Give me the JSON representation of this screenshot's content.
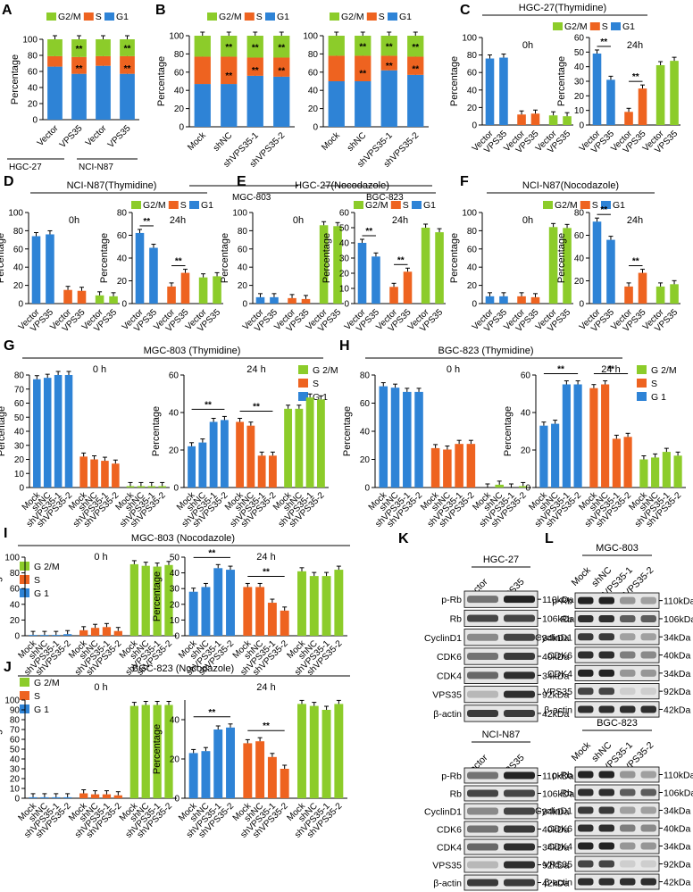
{
  "colors": {
    "g1": "#2e83d6",
    "s": "#ee6320",
    "g2m": "#8ccc2a",
    "axis": "#000000"
  },
  "chart_data": [
    {
      "id": "A",
      "type": "bar",
      "stacked": true,
      "ylim": [
        0,
        100
      ],
      "yticks": [
        0,
        20,
        40,
        60,
        80,
        100
      ],
      "ylabel": "Percentage",
      "categories": [
        "Vector",
        "VPS35",
        "Vector",
        "VPS35"
      ],
      "groups": [
        "HGC-27",
        "NCI-N87"
      ],
      "legend": [
        "G2/M",
        "S",
        "G1"
      ],
      "series": [
        {
          "name": "G1",
          "values": [
            66,
            57,
            67,
            57
          ]
        },
        {
          "name": "S",
          "values": [
            13,
            21,
            12,
            22
          ]
        },
        {
          "name": "G2/M",
          "values": [
            21,
            22,
            21,
            21
          ]
        }
      ],
      "annotations": [
        "**",
        "**",
        "**",
        "**"
      ]
    },
    {
      "id": "B1",
      "type": "bar",
      "stacked": true,
      "ylim": [
        0,
        100
      ],
      "yticks": [
        0,
        20,
        40,
        60,
        80,
        100
      ],
      "ylabel": "Percentage",
      "categories": [
        "Mock",
        "shNC",
        "shVPS35-1",
        "shVPS35-2"
      ],
      "group": "MGC-803",
      "legend": [
        "G2/M",
        "S",
        "G1"
      ],
      "series": [
        {
          "name": "G1",
          "values": [
            47,
            47,
            56,
            55
          ]
        },
        {
          "name": "S",
          "values": [
            30,
            30,
            20,
            21
          ]
        },
        {
          "name": "G2/M",
          "values": [
            23,
            23,
            24,
            24
          ]
        }
      ],
      "annotations": [
        "**",
        "**",
        "**",
        "**"
      ]
    },
    {
      "id": "B2",
      "type": "bar",
      "stacked": true,
      "ylim": [
        0,
        100
      ],
      "yticks": [
        0,
        20,
        40,
        60,
        80,
        100
      ],
      "ylabel": "",
      "categories": [
        "Mock",
        "shNC",
        "shVPS35-1",
        "shVPS35-2"
      ],
      "group": "BGC-823",
      "legend": [
        "G2/M",
        "S",
        "G1"
      ],
      "series": [
        {
          "name": "G1",
          "values": [
            50,
            50,
            62,
            57
          ]
        },
        {
          "name": "S",
          "values": [
            28,
            28,
            16,
            20
          ]
        },
        {
          "name": "G2/M",
          "values": [
            22,
            22,
            22,
            23
          ]
        }
      ],
      "annotations": [
        "**",
        "**",
        "**",
        "**"
      ]
    },
    {
      "id": "C",
      "type": "bar",
      "title": "HGC-27(Thymidine)",
      "legend": [
        "G2/M",
        "S",
        "G1"
      ],
      "categories": [
        "Vector",
        "VPS35",
        "Vector",
        "VPS35",
        "Vector",
        "VPS35"
      ],
      "panels": [
        {
          "label": "0h",
          "ylim": [
            0,
            100
          ],
          "yticks": [
            0,
            20,
            40,
            60,
            80,
            100
          ],
          "ylabel": "Percentage",
          "values": [
            76,
            77,
            12,
            13,
            11,
            10
          ]
        },
        {
          "label": "24h",
          "ylim": [
            0,
            60
          ],
          "yticks": [
            0,
            10,
            20,
            30,
            40,
            50,
            60
          ],
          "ylabel": "Percentage",
          "values": [
            49,
            31,
            9,
            25,
            41,
            44
          ]
        }
      ],
      "annotations": [
        "**",
        "**"
      ]
    },
    {
      "id": "D",
      "type": "bar",
      "title": "NCI-N87(Thymidine)",
      "legend": [
        "G2/M",
        "S",
        "G1"
      ],
      "categories": [
        "Vector",
        "VPS35",
        "Vector",
        "VPS35",
        "Vector",
        "VPS35"
      ],
      "panels": [
        {
          "label": "0h",
          "ylim": [
            0,
            100
          ],
          "yticks": [
            0,
            20,
            40,
            60,
            80,
            100
          ],
          "ylabel": "Percentage",
          "values": [
            74,
            76,
            15,
            14,
            9,
            8
          ]
        },
        {
          "label": "24h",
          "ylim": [
            0,
            80
          ],
          "yticks": [
            0,
            20,
            40,
            60,
            80
          ],
          "ylabel": "Percentage",
          "values": [
            62,
            49,
            15,
            27,
            23,
            24
          ]
        }
      ],
      "annotations": [
        "**",
        "**"
      ]
    },
    {
      "id": "E",
      "type": "bar",
      "title": "HGC-27(Nocodazole)",
      "legend": [
        "G2/M",
        "S",
        "G1"
      ],
      "categories": [
        "Vector",
        "VPS35",
        "Vector",
        "VPS35",
        "Vector",
        "VPS35"
      ],
      "panels": [
        {
          "label": "0h",
          "ylim": [
            0,
            100
          ],
          "yticks": [
            0,
            20,
            40,
            60,
            80,
            100
          ],
          "ylabel": "Percentage",
          "values": [
            7,
            7,
            6,
            5,
            86,
            85
          ]
        },
        {
          "label": "24h",
          "ylim": [
            0,
            60
          ],
          "yticks": [
            0,
            10,
            20,
            30,
            40,
            50,
            60
          ],
          "ylabel": "Percentage",
          "values": [
            40,
            31,
            11,
            21,
            50,
            47
          ]
        }
      ],
      "annotations": [
        "**",
        "**"
      ]
    },
    {
      "id": "F",
      "type": "bar",
      "title": "NCI-N87(Nocodazole)",
      "legend": [
        "G2/M",
        "S",
        "G1"
      ],
      "categories": [
        "Vector",
        "VPS35",
        "Vector",
        "VPS35",
        "Vector",
        "VPS35"
      ],
      "panels": [
        {
          "label": "0h",
          "ylim": [
            0,
            100
          ],
          "yticks": [
            0,
            20,
            40,
            60,
            80,
            100
          ],
          "ylabel": "Percentage",
          "values": [
            8,
            8,
            8,
            7,
            84,
            83
          ]
        },
        {
          "label": "24h",
          "ylim": [
            0,
            80
          ],
          "yticks": [
            0,
            20,
            40,
            60,
            80
          ],
          "ylabel": "Percentage",
          "values": [
            72,
            56,
            15,
            27,
            15,
            17
          ]
        }
      ],
      "annotations": [
        "**",
        "**"
      ]
    },
    {
      "id": "G",
      "type": "bar",
      "title": "MGC-803   (Thymidine)",
      "legend": [
        "G 2/M",
        "S",
        "G 1"
      ],
      "categories": [
        "Mock",
        "shNC",
        "shVPS35-1",
        "shVPS35-2"
      ],
      "panels": [
        {
          "label": "0 h",
          "ylim": [
            0,
            80
          ],
          "yticks": [
            0,
            10,
            20,
            30,
            40,
            50,
            60,
            70,
            80
          ],
          "ylabel": "Percentage",
          "series": [
            {
              "name": "G1",
              "values": [
                77,
                78,
                80,
                81
              ]
            },
            {
              "name": "S",
              "values": [
                22,
                20,
                19,
                17
              ]
            },
            {
              "name": "G2/M",
              "values": [
                1,
                1,
                1,
                1
              ]
            }
          ]
        },
        {
          "label": "24 h",
          "ylim": [
            0,
            60
          ],
          "yticks": [
            0,
            20,
            40,
            60
          ],
          "ylabel": "Percentage",
          "series": [
            {
              "name": "G1",
              "values": [
                22,
                24,
                35,
                36
              ]
            },
            {
              "name": "S",
              "values": [
                35,
                33,
                17,
                17
              ]
            },
            {
              "name": "G2/M",
              "values": [
                42,
                42,
                48,
                47
              ]
            }
          ]
        }
      ],
      "annotations": [
        "**",
        "**"
      ]
    },
    {
      "id": "H",
      "type": "bar",
      "title": "BGC-823   (Thymidine)",
      "legend": [
        "G 2/M",
        "S",
        "G 1"
      ],
      "categories": [
        "Mock",
        "shNC",
        "shVPS35-1",
        "shVPS35-2"
      ],
      "panels": [
        {
          "label": "0 h",
          "ylim": [
            0,
            80
          ],
          "yticks": [
            0,
            20,
            40,
            60,
            80
          ],
          "ylabel": "Percentage",
          "series": [
            {
              "name": "G1",
              "values": [
                72,
                71,
                68,
                68
              ]
            },
            {
              "name": "S",
              "values": [
                28,
                27,
                31,
                31
              ]
            },
            {
              "name": "G2/M",
              "values": [
                0,
                2,
                0,
                1
              ]
            }
          ]
        },
        {
          "label": "24 h",
          "ylim": [
            0,
            60
          ],
          "yticks": [
            0,
            20,
            40,
            60
          ],
          "ylabel": "Percentage",
          "series": [
            {
              "name": "G1",
              "values": [
                33,
                34,
                55,
                55
              ]
            },
            {
              "name": "S",
              "values": [
                53,
                55,
                26,
                27
              ]
            },
            {
              "name": "G2/M",
              "values": [
                15,
                16,
                19,
                17
              ]
            }
          ]
        }
      ],
      "annotations": [
        "**",
        "**"
      ]
    },
    {
      "id": "I",
      "type": "bar",
      "title": "MGC-803   (Nocodazole)",
      "legend": [
        "G 2/M",
        "S",
        "G 1"
      ],
      "categories": [
        "Mock",
        "shNC",
        "shVPS35-1",
        "shVPS35-2"
      ],
      "panels": [
        {
          "label": "0 h",
          "ylim": [
            0,
            100
          ],
          "yticks": [
            0,
            20,
            40,
            60,
            80,
            100
          ],
          "ylabel": "Percentage",
          "series": [
            {
              "name": "G1",
              "values": [
                1,
                1,
                1,
                2
              ]
            },
            {
              "name": "S",
              "values": [
                7,
                10,
                11,
                6
              ]
            },
            {
              "name": "G2/M",
              "values": [
                91,
                89,
                88,
                90
              ]
            }
          ]
        },
        {
          "label": "24 h",
          "ylim": [
            0,
            50
          ],
          "yticks": [
            0,
            10,
            20,
            30,
            40,
            50
          ],
          "ylabel": "Percentage",
          "series": [
            {
              "name": "G1",
              "values": [
                28,
                31,
                43,
                42
              ]
            },
            {
              "name": "S",
              "values": [
                31,
                31,
                21,
                16
              ]
            },
            {
              "name": "G2/M",
              "values": [
                41,
                38,
                38,
                42
              ]
            }
          ]
        }
      ],
      "annotations": [
        "**",
        "**"
      ]
    },
    {
      "id": "J",
      "type": "bar",
      "title": "BGC-823   (Nocodazole)",
      "legend": [
        "G 2/M",
        "S",
        "G 1"
      ],
      "categories": [
        "Mock",
        "shNC",
        "shVPS35-1",
        "shVPS35-2"
      ],
      "panels": [
        {
          "label": "0 h",
          "ylim": [
            0,
            100
          ],
          "yticks": [
            0,
            10,
            20,
            30,
            40,
            50,
            60,
            70,
            80,
            90,
            100
          ],
          "ylabel": "Percentage",
          "series": [
            {
              "name": "G1",
              "values": [
                1,
                1,
                1,
                1
              ]
            },
            {
              "name": "S",
              "values": [
                5,
                4,
                4,
                3
              ]
            },
            {
              "name": "G2/M",
              "values": [
                94,
                95,
                95,
                95
              ]
            }
          ]
        },
        {
          "label": "24 h",
          "ylim": [
            0,
            50
          ],
          "yticks": [
            0,
            20,
            40
          ],
          "ylabel": "Percentage",
          "series": [
            {
              "name": "G1",
              "values": [
                23,
                24,
                35,
                36
              ]
            },
            {
              "name": "S",
              "values": [
                28,
                29,
                21,
                15
              ]
            },
            {
              "name": "G2/M",
              "values": [
                48,
                47,
                45,
                48
              ]
            }
          ]
        }
      ],
      "annotations": [
        "**",
        "**"
      ]
    }
  ],
  "western_blots": {
    "K": {
      "panel": "K",
      "blocks": [
        {
          "cell_line": "HGC-27",
          "lanes": [
            "Vector",
            "VPS35"
          ],
          "proteins": [
            "p-Rb",
            "Rb",
            "CyclinD1",
            "CDK6",
            "CDK4",
            "VPS35",
            "β-actin"
          ],
          "sizes": [
            "110kDa",
            "106kDa",
            "34kDa",
            "40kDa",
            "34kDa",
            "92kDa",
            "42kDa"
          ]
        },
        {
          "cell_line": "NCI-N87",
          "lanes": [
            "Vector",
            "VPS35"
          ],
          "proteins": [
            "p-Rb",
            "Rb",
            "CyclinD1",
            "CDK6",
            "CDK4",
            "VPS35",
            "β-actin"
          ],
          "sizes": [
            "110kDa",
            "106kDa",
            "34kDa",
            "40kDa",
            "34kDa",
            "92kDa",
            "42kDa"
          ]
        }
      ]
    },
    "L": {
      "panel": "L",
      "blocks": [
        {
          "cell_line": "MGC-803",
          "lanes": [
            "Mock",
            "shNC",
            "shVPS35-1",
            "shVPS35-2"
          ],
          "proteins": [
            "p-Rb",
            "Rb",
            "CyclinD1",
            "CDK6",
            "CDK4",
            "VPS35",
            "β-actin"
          ],
          "sizes": [
            "110kDa",
            "106kDa",
            "34kDa",
            "40kDa",
            "34kDa",
            "92kDa",
            "42kDa"
          ]
        },
        {
          "cell_line": "BGC-823",
          "lanes": [
            "Mock",
            "shNC",
            "shVPS35-1",
            "shVPS35-2"
          ],
          "proteins": [
            "p-Rb",
            "Rb",
            "CyclinD1",
            "CDK6",
            "CDK4",
            "VPS35",
            "β-actin"
          ],
          "sizes": [
            "110kDa",
            "106kDa",
            "34kDa",
            "40kDa",
            "34kDa",
            "92kDa",
            "42kDa"
          ]
        }
      ]
    }
  }
}
